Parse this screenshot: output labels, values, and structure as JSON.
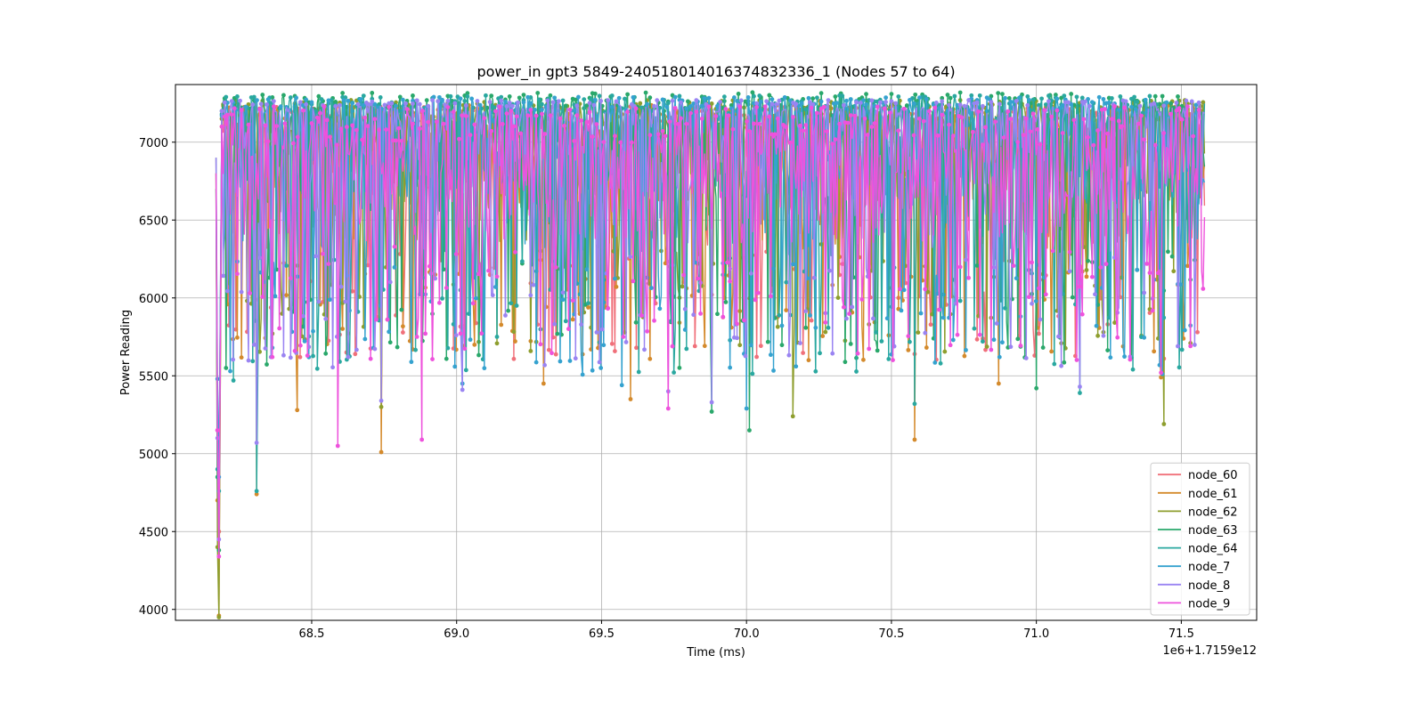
{
  "chart_data": {
    "type": "line",
    "title": "power_in gpt3 5849-240518014016374832336_1 (Nodes 57 to 64)",
    "xlabel": "Time (ms)",
    "ylabel": "Power Reading",
    "x_offset_label": "1e6+1.7159e12",
    "xlim": [
      68.03,
      71.76
    ],
    "ylim": [
      3930,
      7370
    ],
    "xticks": [
      68.5,
      69.0,
      69.5,
      70.0,
      70.5,
      71.0,
      71.5
    ],
    "xtick_labels": [
      "68.5",
      "69.0",
      "69.5",
      "70.0",
      "70.5",
      "71.0",
      "71.5"
    ],
    "yticks": [
      4000,
      4500,
      5000,
      5500,
      6000,
      6500,
      7000
    ],
    "ytick_labels": [
      "4000",
      "4500",
      "5000",
      "5500",
      "6000",
      "6500",
      "7000"
    ],
    "grid": true,
    "legend_position": "lower-right",
    "x_range": [
      68.17,
      71.58
    ],
    "series": [
      {
        "name": "node_60",
        "color": "#f0707a",
        "start": [
          [
            68.17,
            6900
          ],
          [
            68.175,
            5150
          ],
          [
            68.18,
            4500
          ],
          [
            68.19,
            7150
          ]
        ],
        "cycles": 24,
        "dip_min": [
          5600,
          6300
        ],
        "high": [
          7050,
          7230
        ],
        "extreme_dips": [
          [
            68.46,
            5620
          ],
          [
            68.62,
            5650
          ],
          [
            69.62,
            5680
          ],
          [
            70.58,
            5640
          ],
          [
            71.44,
            5610
          ]
        ]
      },
      {
        "name": "node_61",
        "color": "#d48a2c",
        "start": [
          [
            68.17,
            6800
          ],
          [
            68.175,
            4700
          ],
          [
            68.18,
            3960
          ],
          [
            68.19,
            7100
          ]
        ],
        "cycles": 24,
        "dip_min": [
          5600,
          6300
        ],
        "high": [
          7060,
          7240
        ],
        "extreme_dips": [
          [
            68.31,
            4740
          ],
          [
            68.45,
            5280
          ],
          [
            68.74,
            5010
          ],
          [
            69.3,
            5450
          ],
          [
            69.6,
            5350
          ],
          [
            70.58,
            5090
          ],
          [
            70.87,
            5450
          ],
          [
            71.43,
            5490
          ]
        ]
      },
      {
        "name": "node_62",
        "color": "#8e9e2e",
        "start": [
          [
            68.17,
            6700
          ],
          [
            68.175,
            4400
          ],
          [
            68.18,
            3950
          ],
          [
            68.19,
            7150
          ]
        ],
        "cycles": 24,
        "dip_min": [
          5650,
          6350
        ],
        "high": [
          7100,
          7270
        ],
        "extreme_dips": [
          [
            68.74,
            5300
          ],
          [
            70.16,
            5240
          ],
          [
            71.44,
            5190
          ]
        ]
      },
      {
        "name": "node_63",
        "color": "#2aa86b",
        "start": [
          [
            68.17,
            6800
          ],
          [
            68.175,
            4850
          ],
          [
            68.18,
            4380
          ],
          [
            68.19,
            7200
          ]
        ],
        "cycles": 24,
        "dip_min": [
          5550,
          6300
        ],
        "high": [
          7120,
          7320
        ],
        "extreme_dips": [
          [
            69.88,
            5270
          ],
          [
            70.01,
            5150
          ],
          [
            71.0,
            5420
          ]
        ]
      },
      {
        "name": "node_64",
        "color": "#2aa8a0",
        "start": [
          [
            68.17,
            6700
          ],
          [
            68.175,
            4900
          ],
          [
            68.18,
            4760
          ],
          [
            68.19,
            7180
          ]
        ],
        "cycles": 24,
        "dip_min": [
          5500,
          6250
        ],
        "high": [
          7100,
          7300
        ],
        "extreme_dips": [
          [
            68.31,
            4760
          ],
          [
            68.23,
            5470
          ],
          [
            70.58,
            5320
          ],
          [
            71.15,
            5390
          ]
        ]
      },
      {
        "name": "node_7",
        "color": "#35a2cf",
        "start": [
          [
            68.17,
            6900
          ],
          [
            68.175,
            5480
          ],
          [
            68.18,
            4850
          ],
          [
            68.19,
            7170
          ]
        ],
        "cycles": 24,
        "dip_min": [
          5500,
          6250
        ],
        "high": [
          7120,
          7290
        ],
        "extreme_dips": [
          [
            69.02,
            5450
          ],
          [
            69.57,
            5440
          ],
          [
            70.0,
            5290
          ]
        ]
      },
      {
        "name": "node_8",
        "color": "#9a84f2",
        "start": [
          [
            68.17,
            6900
          ],
          [
            68.175,
            5100
          ],
          [
            68.18,
            4450
          ],
          [
            68.19,
            7200
          ]
        ],
        "cycles": 24,
        "dip_min": [
          5550,
          6300
        ],
        "high": [
          7150,
          7270
        ],
        "extreme_dips": [
          [
            68.31,
            5070
          ],
          [
            68.74,
            5340
          ],
          [
            69.02,
            5410
          ],
          [
            69.73,
            5400
          ],
          [
            69.88,
            5330
          ],
          [
            71.15,
            5430
          ]
        ]
      },
      {
        "name": "node_9",
        "color": "#ee52dc",
        "start": [
          [
            68.17,
            6800
          ],
          [
            68.175,
            5150
          ],
          [
            68.18,
            4340
          ],
          [
            68.19,
            7100
          ]
        ],
        "cycles": 24,
        "dip_min": [
          5600,
          6350
        ],
        "high": [
          6900,
          7230
        ],
        "extreme_dips": [
          [
            68.59,
            5050
          ],
          [
            68.88,
            5090
          ],
          [
            69.73,
            5290
          ],
          [
            71.43,
            5520
          ]
        ]
      }
    ]
  }
}
